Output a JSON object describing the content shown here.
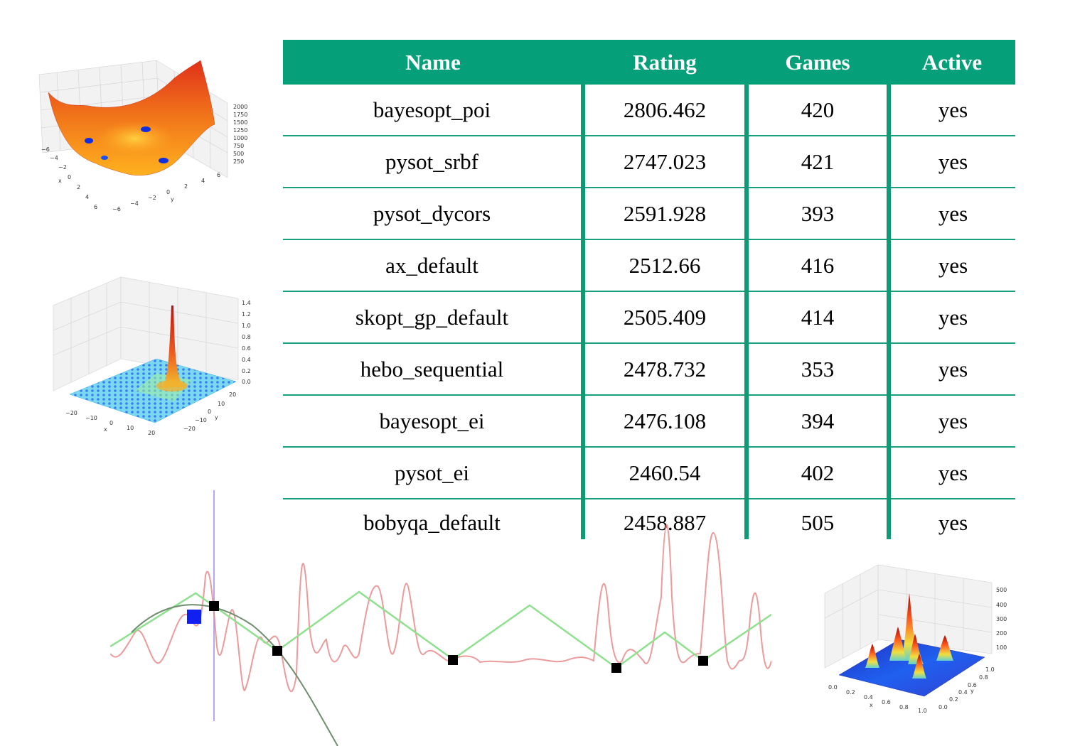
{
  "leaderboard": {
    "columns": [
      "Name",
      "Rating",
      "Games",
      "Active"
    ],
    "rows": [
      {
        "name": "bayesopt_poi",
        "rating": "2806.462",
        "games": "420",
        "active": "yes"
      },
      {
        "name": "pysot_srbf",
        "rating": "2747.023",
        "games": "421",
        "active": "yes"
      },
      {
        "name": "pysot_dycors",
        "rating": "2591.928",
        "games": "393",
        "active": "yes"
      },
      {
        "name": "ax_default",
        "rating": "2512.66",
        "games": "416",
        "active": "yes"
      },
      {
        "name": "skopt_gp_default",
        "rating": "2505.409",
        "games": "414",
        "active": "yes"
      },
      {
        "name": "hebo_sequential",
        "rating": "2478.732",
        "games": "353",
        "active": "yes"
      },
      {
        "name": "bayesopt_ei",
        "rating": "2476.108",
        "games": "394",
        "active": "yes"
      },
      {
        "name": "pysot_ei",
        "rating": "2460.54",
        "games": "402",
        "active": "yes"
      },
      {
        "name": "bobyqa_default",
        "rating": "2458.887",
        "games": "505",
        "active": "yes"
      }
    ],
    "header_color": "#05a07a"
  },
  "plots": {
    "top_left": {
      "z_ticks": [
        "2000",
        "1750",
        "1500",
        "1250",
        "1000",
        "750",
        "500",
        "250"
      ],
      "x_ticks": [
        "−6",
        "−4",
        "−2",
        "0",
        "2",
        "4",
        "6"
      ],
      "y_ticks": [
        "−6",
        "−4",
        "−2",
        "0",
        "2",
        "4",
        "6"
      ],
      "xlabel": "x",
      "ylabel": "y"
    },
    "middle_left": {
      "z_ticks": [
        "1.4",
        "1.2",
        "1.0",
        "0.8",
        "0.6",
        "0.4",
        "0.2",
        "0.0"
      ],
      "x_ticks": [
        "−20",
        "−10",
        "0",
        "10",
        "20"
      ],
      "y_ticks": [
        "20",
        "10",
        "0",
        "−10",
        "−20"
      ],
      "xlabel": "x",
      "ylabel": "y"
    },
    "bottom_right": {
      "z_ticks": [
        "500",
        "400",
        "300",
        "200",
        "100"
      ],
      "x_ticks": [
        "0.0",
        "0.2",
        "0.4",
        "0.6",
        "0.8",
        "1.0"
      ],
      "y_ticks": [
        "1.0",
        "0.8",
        "0.6",
        "0.4",
        "0.2",
        "0.0"
      ],
      "xlabel": "x",
      "ylabel": "y"
    }
  },
  "curve_plot": {
    "colors": {
      "objective": "#e88a8a",
      "surrogate": "#8fe08f",
      "fit": "#6f8f6f",
      "cursor": "#9b8cf0",
      "candidate": "#1020f0"
    }
  }
}
